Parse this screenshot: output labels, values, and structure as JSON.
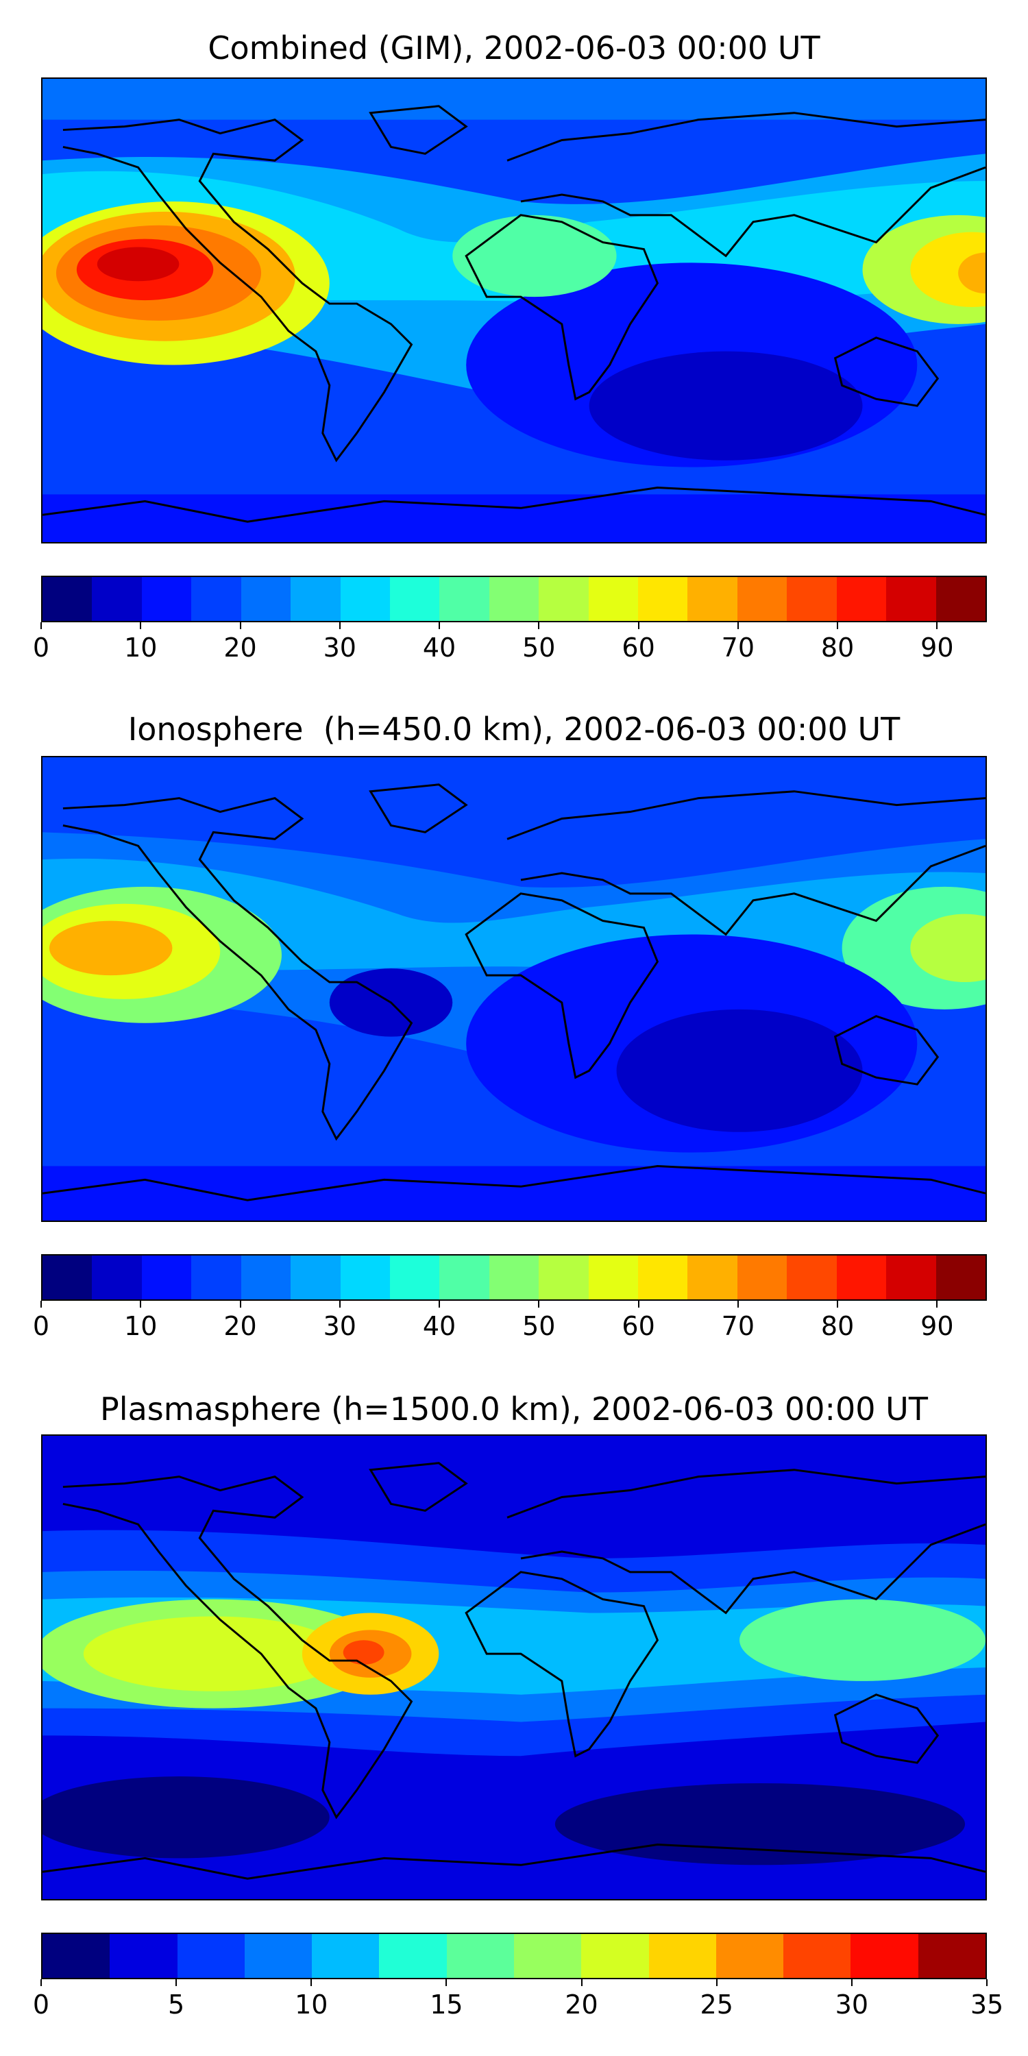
{
  "panels": [
    {
      "title": "Combined (GIM), 2002-06-03 00:00 UT",
      "colorbar": {
        "min": 0,
        "max": 95,
        "step": 5,
        "ticks": [
          "0",
          "10",
          "20",
          "30",
          "40",
          "50",
          "60",
          "70",
          "80",
          "90"
        ],
        "tick_values": [
          0,
          10,
          20,
          30,
          40,
          50,
          60,
          70,
          80,
          90
        ]
      }
    },
    {
      "title": "Ionosphere  (h=450.0 km), 2002-06-03 00:00 UT",
      "colorbar": {
        "min": 0,
        "max": 95,
        "step": 5,
        "ticks": [
          "0",
          "10",
          "20",
          "30",
          "40",
          "50",
          "60",
          "70",
          "80",
          "90"
        ],
        "tick_values": [
          0,
          10,
          20,
          30,
          40,
          50,
          60,
          70,
          80,
          90
        ]
      }
    },
    {
      "title": "Plasmasphere (h=1500.0 km), 2002-06-03 00:00 UT",
      "colorbar": {
        "min": 0,
        "max": 35,
        "step": 2.5,
        "ticks": [
          "0",
          "5",
          "10",
          "15",
          "20",
          "25",
          "30",
          "35"
        ],
        "tick_values": [
          0,
          5,
          10,
          15,
          20,
          25,
          30,
          35
        ]
      }
    }
  ],
  "colormap": "jet",
  "colormap_19": [
    "#00007f",
    "#0000c8",
    "#0010ff",
    "#0040ff",
    "#0070ff",
    "#00a8ff",
    "#00d8ff",
    "#1dffda",
    "#50ffa6",
    "#83ff73",
    "#b6ff40",
    "#e4ff13",
    "#ffe600",
    "#ffb000",
    "#ff7a00",
    "#ff4800",
    "#ff1600",
    "#d40000",
    "#8b0000"
  ],
  "colormap_14": [
    "#00007f",
    "#0000e0",
    "#0038ff",
    "#0078ff",
    "#00bcff",
    "#20ffd6",
    "#5cff9a",
    "#98ff5e",
    "#d4ff22",
    "#ffd400",
    "#ff8c00",
    "#ff4400",
    "#ff0a00",
    "#a00000"
  ]
}
